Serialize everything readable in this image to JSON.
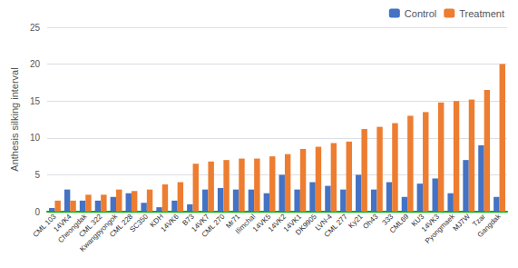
{
  "chart_data": {
    "type": "bar",
    "categories": [
      "CML 103",
      "14VK4",
      "Cheongdak",
      "CML 322",
      "Kwangpyongok",
      "CML 228",
      "SC350",
      "KDH",
      "14VK6",
      "B73",
      "14VK7",
      "CML 270",
      "Mr71",
      "Ilimchal",
      "14VK5",
      "14VK2",
      "14VK1",
      "DK9905",
      "LVN-4",
      "CML 277",
      "Ky21",
      "Oh43",
      "333",
      "CML69",
      "KU3",
      "14VK3",
      "Pyongmaek",
      "MJ7W",
      "Tzar",
      "Gangdak"
    ],
    "series": [
      {
        "name": "Control",
        "color": "#4472c4",
        "values": [
          0.5,
          3.0,
          1.5,
          1.5,
          2.0,
          2.5,
          1.2,
          0.6,
          1.5,
          1.0,
          3.0,
          3.2,
          3.0,
          3.0,
          2.5,
          5.0,
          3.0,
          4.0,
          3.5,
          3.0,
          5.0,
          3.0,
          4.0,
          2.0,
          3.8,
          4.5,
          2.5,
          7.0,
          9.0,
          2.0
        ]
      },
      {
        "name": "Treatment",
        "color": "#ed7d31",
        "values": [
          1.5,
          1.5,
          2.3,
          2.3,
          3.0,
          2.8,
          3.0,
          3.7,
          4.0,
          6.5,
          6.8,
          7.0,
          7.2,
          7.2,
          7.5,
          7.8,
          8.5,
          8.8,
          9.3,
          9.5,
          11.2,
          11.5,
          12.0,
          13.0,
          13.5,
          14.8,
          15.0,
          15.2,
          16.5,
          20.0
        ]
      }
    ],
    "ylabel": "Anthesis silking interval",
    "ylim": [
      0,
      25
    ],
    "yticks": [
      0,
      5,
      10,
      15,
      20,
      25
    ],
    "grid": true,
    "legend": "upper right"
  }
}
